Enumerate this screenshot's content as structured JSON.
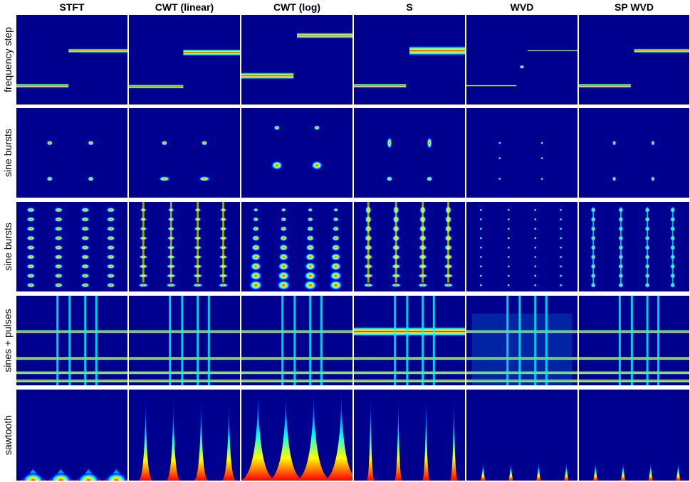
{
  "columns": [
    "STFT",
    "CWT (linear)",
    "CWT (log)",
    "S",
    "WVD",
    "SP WVD"
  ],
  "rows": [
    "frequency step",
    "sine bursts",
    "sine bursts",
    "sines + pulses",
    "sawtooth"
  ],
  "colors": {
    "background": "#00008f",
    "low": "#0000ff",
    "mid": "#00ffff",
    "high": "#ffff00",
    "peak": "#ff0000"
  }
}
